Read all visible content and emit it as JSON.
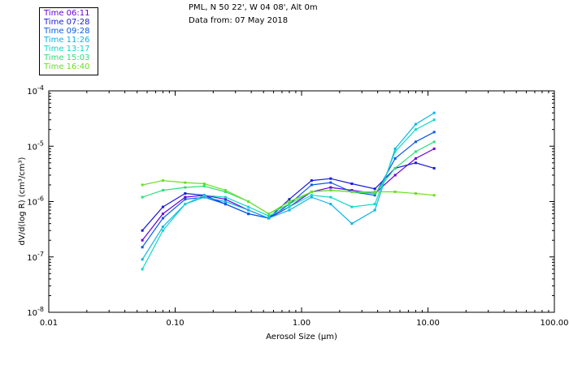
{
  "legend": {
    "items": [
      {
        "label": "Time 06:11",
        "color": "#6a00d8"
      },
      {
        "label": "Time 07:28",
        "color": "#1a1ad8"
      },
      {
        "label": "Time 09:28",
        "color": "#0a5ae6"
      },
      {
        "label": "Time 11:26",
        "color": "#0ab4e6"
      },
      {
        "label": "Time 13:17",
        "color": "#12d6c8"
      },
      {
        "label": "Time 15:03",
        "color": "#2ee07a"
      },
      {
        "label": "Time 16:40",
        "color": "#6ae024"
      }
    ]
  },
  "header": {
    "station": "PML, N 50 22', W 04 08', Alt 0m",
    "date": "Data from: 07 May 2018"
  },
  "chart_data": {
    "type": "line",
    "title": "PML, N 50 22', W 04 08', Alt 0m",
    "subtitle": "Data from: 07 May 2018",
    "xlabel": "Aerosol Size (µm)",
    "ylabel": "dV/d(log R) (cm³/cm³)",
    "xscale": "log",
    "yscale": "log",
    "xlim": [
      0.01,
      100
    ],
    "ylim": [
      1e-08,
      0.0001
    ],
    "xticks": [
      {
        "value": 0.01,
        "label": "0.01"
      },
      {
        "value": 0.1,
        "label": "0.10"
      },
      {
        "value": 1,
        "label": "1.00"
      },
      {
        "value": 10,
        "label": "10.00"
      },
      {
        "value": 100,
        "label": "100.00"
      }
    ],
    "yticks": [
      {
        "value": 1e-08,
        "mant": "10",
        "exp": "-8"
      },
      {
        "value": 1e-07,
        "mant": "10",
        "exp": "-7"
      },
      {
        "value": 1e-06,
        "mant": "10",
        "exp": "-6"
      },
      {
        "value": 1e-05,
        "mant": "10",
        "exp": "-5"
      },
      {
        "value": 0.0001,
        "mant": "10",
        "exp": "-4"
      }
    ],
    "x": [
      0.055,
      0.08,
      0.12,
      0.17,
      0.25,
      0.38,
      0.55,
      0.8,
      1.2,
      1.7,
      2.5,
      3.8,
      5.5,
      8.0,
      11.2
    ],
    "series": [
      {
        "name": "06:11",
        "color": "#6a00d8",
        "values": [
          2e-07,
          6e-07,
          1.2e-06,
          1.3e-06,
          1.1e-06,
          7e-07,
          5e-07,
          8e-07,
          1.5e-06,
          1.8e-06,
          1.6e-06,
          1.4e-06,
          3e-06,
          6e-06,
          9e-06
        ]
      },
      {
        "name": "07:28",
        "color": "#1a1ad8",
        "values": [
          3e-07,
          8e-07,
          1.4e-06,
          1.3e-06,
          9e-07,
          6e-07,
          5e-07,
          1.1e-06,
          2.4e-06,
          2.6e-06,
          2.1e-06,
          1.7e-06,
          4e-06,
          5e-06,
          4e-06
        ]
      },
      {
        "name": "09:28",
        "color": "#0a5ae6",
        "values": [
          1.5e-07,
          5e-07,
          1.1e-06,
          1.2e-06,
          9e-07,
          6e-07,
          5e-07,
          9e-07,
          2e-06,
          2.2e-06,
          1.5e-06,
          1.3e-06,
          6e-06,
          1.2e-05,
          1.8e-05
        ]
      },
      {
        "name": "11:26",
        "color": "#0ab4e6",
        "values": [
          9e-08,
          3.5e-07,
          9e-07,
          1.2e-06,
          1e-06,
          7e-07,
          5e-07,
          7e-07,
          1.2e-06,
          9e-07,
          4e-07,
          7e-07,
          9e-06,
          2.5e-05,
          4e-05
        ]
      },
      {
        "name": "13:17",
        "color": "#12d6c8",
        "values": [
          6e-08,
          3e-07,
          9e-07,
          1.3e-06,
          1.2e-06,
          8e-07,
          5.5e-07,
          8e-07,
          1.3e-06,
          1.2e-06,
          8e-07,
          9e-07,
          8e-06,
          2e-05,
          3e-05
        ]
      },
      {
        "name": "15:03",
        "color": "#2ee07a",
        "values": [
          1.2e-06,
          1.6e-06,
          1.8e-06,
          1.9e-06,
          1.5e-06,
          1e-06,
          6e-07,
          9e-07,
          1.5e-06,
          1.6e-06,
          1.5e-06,
          1.4e-06,
          4e-06,
          8e-06,
          1.2e-05
        ]
      },
      {
        "name": "16:40",
        "color": "#6ae024",
        "values": [
          2e-06,
          2.4e-06,
          2.2e-06,
          2.1e-06,
          1.6e-06,
          1e-06,
          6e-07,
          1e-06,
          1.5e-06,
          1.6e-06,
          1.5e-06,
          1.5e-06,
          1.5e-06,
          1.4e-06,
          1.3e-06
        ]
      }
    ]
  }
}
